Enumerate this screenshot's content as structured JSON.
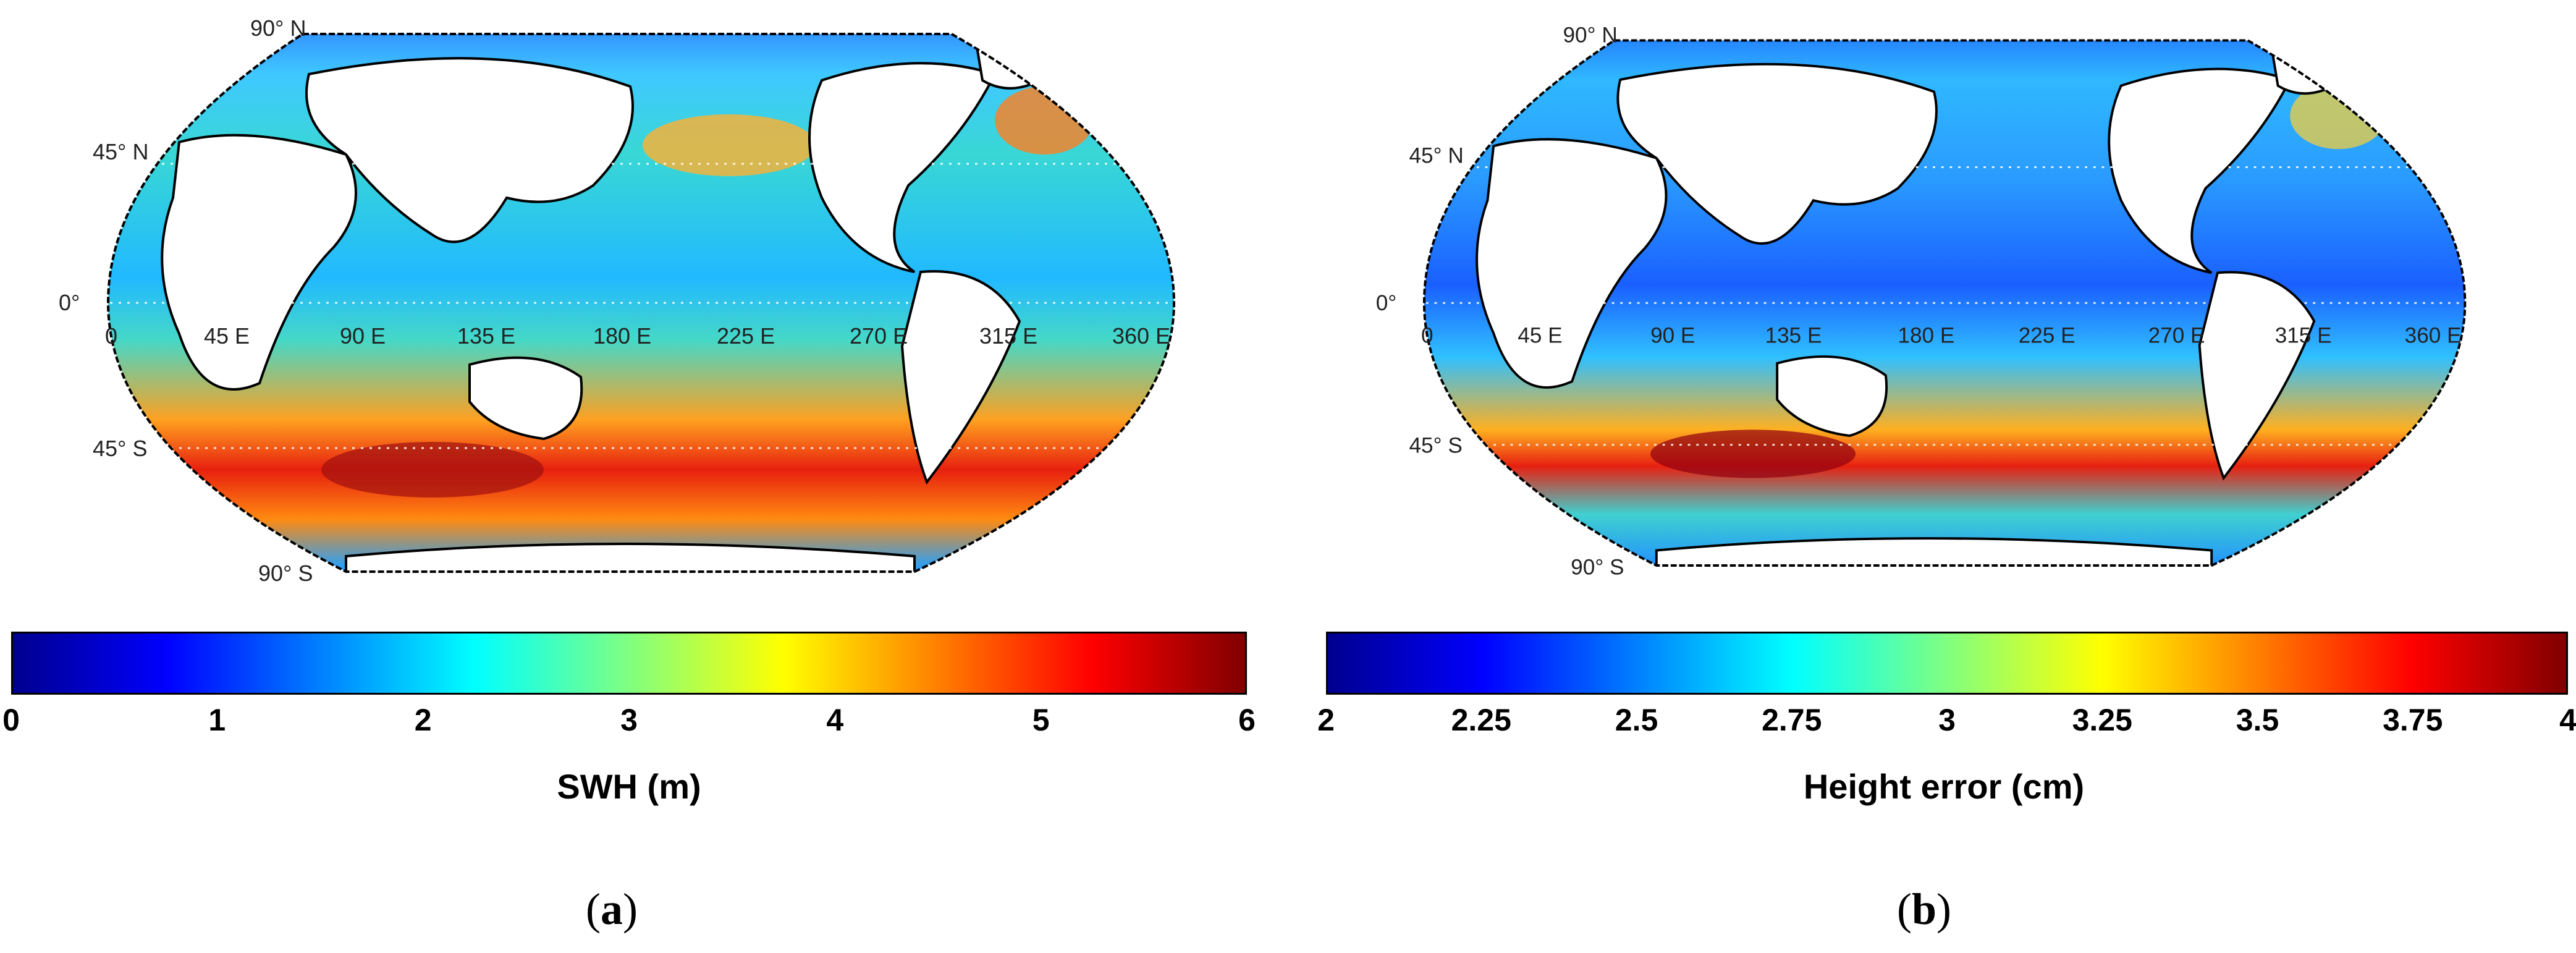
{
  "panels": [
    {
      "id": "a",
      "caption_letter": "a",
      "colorbar": {
        "label": "SWH (m)",
        "ticks": [
          "0",
          "1",
          "2",
          "3",
          "4",
          "5",
          "6"
        ],
        "range": [
          0,
          6
        ]
      },
      "map_description_hotspots": "southern-ocean-max"
    },
    {
      "id": "b",
      "caption_letter": "b",
      "colorbar": {
        "label": "Height error (cm)",
        "ticks": [
          "2",
          "2.25",
          "2.5",
          "2.75",
          "3",
          "3.25",
          "3.5",
          "3.75",
          "4"
        ],
        "range": [
          2,
          4
        ]
      },
      "map_description_hotspots": "southern-ocean-max"
    }
  ],
  "graticule": {
    "lat_labels": [
      "90° N",
      "45° N",
      "0°",
      "45° S",
      "90° S"
    ],
    "lon_labels": [
      "0",
      "45 E",
      "90 E",
      "135 E",
      "180 E",
      "225 E",
      "270 E",
      "315 E",
      "360 E"
    ]
  },
  "colormap": [
    "#00008f",
    "#0000ff",
    "#0080ff",
    "#00ffff",
    "#80ff80",
    "#ffff00",
    "#ff8000",
    "#ff0000",
    "#800000"
  ]
}
